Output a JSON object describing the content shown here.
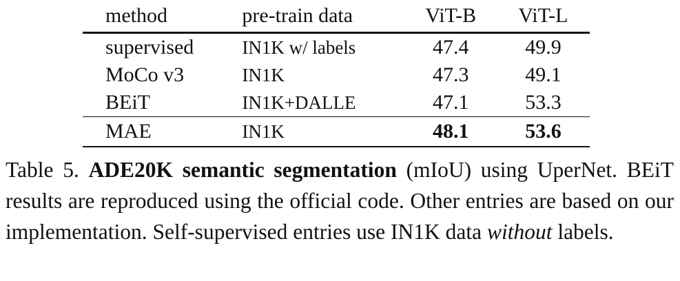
{
  "table": {
    "headers": [
      "method",
      "pre-train data",
      "ViT-B",
      "ViT-L"
    ],
    "rows": [
      {
        "method": "supervised",
        "data": "IN1K w/ labels",
        "vitb": "47.4",
        "vitl": "49.9"
      },
      {
        "method": "MoCo v3",
        "data": "IN1K",
        "vitb": "47.3",
        "vitl": "49.1"
      },
      {
        "method": "BEiT",
        "data": "IN1K+DALLE",
        "vitb": "47.1",
        "vitl": "53.3"
      },
      {
        "method": "MAE",
        "data": "IN1K",
        "vitb": "48.1",
        "vitl": "53.6"
      }
    ]
  },
  "caption": {
    "label": "Table 5.",
    "title": "ADE20K semantic segmentation",
    "text1": "(mIoU) using UperNet. BEiT results are reproduced using the official code. Other entries are based on our implementation. Self-supervised entries use IN1K data",
    "emph": "without",
    "text2": "labels."
  }
}
